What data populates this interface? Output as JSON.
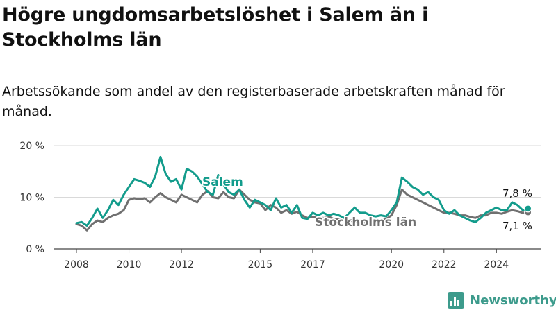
{
  "title": "Högre ungdomsarbetslöshet i Salem än i Stockholms län",
  "subtitle": "Arbetssökande som andel av den registerbaserade arbetskraften månad för månad.",
  "brand": {
    "name": "Newsworthy",
    "icon": "bar-chart-logo-icon",
    "color": "#3d9b8c"
  },
  "chart_data": {
    "type": "line",
    "title": "Högre ungdomsarbetslöshet i Salem än i Stockholms län",
    "subtitle": "Arbetssökande som andel av den registerbaserade arbetskraften månad för månad.",
    "xlabel": "",
    "ylabel": "",
    "x_ticks": [
      2008,
      2010,
      2012,
      2015,
      2017,
      2020,
      2022,
      2024
    ],
    "y_ticks": [
      0,
      10,
      20
    ],
    "y_tick_labels": [
      "0 %",
      "10 %",
      "20 %"
    ],
    "ylim": [
      0,
      20
    ],
    "xlim": [
      2008,
      2026
    ],
    "grid": true,
    "series": [
      {
        "name": "Salem",
        "color": "#139c8c",
        "end_label": "7,8 %",
        "points": [
          [
            2008.0,
            5.0
          ],
          [
            2008.2,
            5.2
          ],
          [
            2008.4,
            4.5
          ],
          [
            2008.6,
            6.0
          ],
          [
            2008.8,
            7.8
          ],
          [
            2009.0,
            6.0
          ],
          [
            2009.2,
            7.5
          ],
          [
            2009.4,
            9.5
          ],
          [
            2009.6,
            8.5
          ],
          [
            2009.8,
            10.5
          ],
          [
            2010.0,
            12.0
          ],
          [
            2010.2,
            13.5
          ],
          [
            2010.4,
            13.2
          ],
          [
            2010.6,
            12.8
          ],
          [
            2010.8,
            12.0
          ],
          [
            2011.0,
            14.0
          ],
          [
            2011.2,
            17.8
          ],
          [
            2011.4,
            14.5
          ],
          [
            2011.6,
            13.0
          ],
          [
            2011.8,
            13.5
          ],
          [
            2012.0,
            11.5
          ],
          [
            2012.2,
            15.5
          ],
          [
            2012.4,
            15.0
          ],
          [
            2012.6,
            14.0
          ],
          [
            2012.8,
            12.5
          ],
          [
            2013.0,
            11.0
          ],
          [
            2013.2,
            10.5
          ],
          [
            2013.4,
            14.3
          ],
          [
            2013.6,
            12.5
          ],
          [
            2013.8,
            11.0
          ],
          [
            2014.0,
            10.5
          ],
          [
            2014.2,
            11.5
          ],
          [
            2014.4,
            9.5
          ],
          [
            2014.6,
            8.0
          ],
          [
            2014.8,
            9.5
          ],
          [
            2015.0,
            9.0
          ],
          [
            2015.2,
            8.5
          ],
          [
            2015.4,
            7.5
          ],
          [
            2015.6,
            9.8
          ],
          [
            2015.8,
            8.0
          ],
          [
            2016.0,
            8.5
          ],
          [
            2016.2,
            7.0
          ],
          [
            2016.4,
            8.5
          ],
          [
            2016.6,
            6.0
          ],
          [
            2016.8,
            5.8
          ],
          [
            2017.0,
            7.0
          ],
          [
            2017.2,
            6.5
          ],
          [
            2017.4,
            7.0
          ],
          [
            2017.6,
            6.5
          ],
          [
            2017.8,
            6.8
          ],
          [
            2018.0,
            6.5
          ],
          [
            2018.2,
            6.0
          ],
          [
            2018.4,
            7.0
          ],
          [
            2018.6,
            8.0
          ],
          [
            2018.8,
            7.0
          ],
          [
            2019.0,
            7.0
          ],
          [
            2019.2,
            6.5
          ],
          [
            2019.4,
            6.3
          ],
          [
            2019.6,
            6.5
          ],
          [
            2019.8,
            6.3
          ],
          [
            2020.0,
            7.5
          ],
          [
            2020.2,
            9.0
          ],
          [
            2020.4,
            13.8
          ],
          [
            2020.6,
            13.0
          ],
          [
            2020.8,
            12.0
          ],
          [
            2021.0,
            11.5
          ],
          [
            2021.2,
            10.5
          ],
          [
            2021.4,
            11.0
          ],
          [
            2021.6,
            10.0
          ],
          [
            2021.8,
            9.5
          ],
          [
            2022.0,
            7.5
          ],
          [
            2022.2,
            6.8
          ],
          [
            2022.4,
            7.5
          ],
          [
            2022.6,
            6.5
          ],
          [
            2022.8,
            6.0
          ],
          [
            2023.0,
            5.5
          ],
          [
            2023.2,
            5.2
          ],
          [
            2023.4,
            6.0
          ],
          [
            2023.6,
            7.0
          ],
          [
            2023.8,
            7.5
          ],
          [
            2024.0,
            8.0
          ],
          [
            2024.2,
            7.5
          ],
          [
            2024.4,
            7.5
          ],
          [
            2024.6,
            9.0
          ],
          [
            2024.8,
            8.5
          ],
          [
            2025.0,
            7.5
          ],
          [
            2025.2,
            7.8
          ]
        ]
      },
      {
        "name": "Stockholms län",
        "color": "#707070",
        "end_label": "7,1 %",
        "points": [
          [
            2008.0,
            4.8
          ],
          [
            2008.2,
            4.5
          ],
          [
            2008.4,
            3.6
          ],
          [
            2008.6,
            4.8
          ],
          [
            2008.8,
            5.5
          ],
          [
            2009.0,
            5.2
          ],
          [
            2009.2,
            6.0
          ],
          [
            2009.4,
            6.5
          ],
          [
            2009.6,
            6.8
          ],
          [
            2009.8,
            7.5
          ],
          [
            2010.0,
            9.5
          ],
          [
            2010.2,
            9.8
          ],
          [
            2010.4,
            9.6
          ],
          [
            2010.6,
            9.8
          ],
          [
            2010.8,
            9.0
          ],
          [
            2011.0,
            10.0
          ],
          [
            2011.2,
            10.8
          ],
          [
            2011.4,
            10.0
          ],
          [
            2011.6,
            9.5
          ],
          [
            2011.8,
            9.0
          ],
          [
            2012.0,
            10.5
          ],
          [
            2012.2,
            10.0
          ],
          [
            2012.4,
            9.5
          ],
          [
            2012.6,
            9.0
          ],
          [
            2012.8,
            10.5
          ],
          [
            2013.0,
            11.2
          ],
          [
            2013.2,
            10.0
          ],
          [
            2013.4,
            9.8
          ],
          [
            2013.6,
            11.0
          ],
          [
            2013.8,
            10.0
          ],
          [
            2014.0,
            9.8
          ],
          [
            2014.2,
            11.5
          ],
          [
            2014.4,
            10.5
          ],
          [
            2014.6,
            9.5
          ],
          [
            2014.8,
            9.0
          ],
          [
            2015.0,
            8.8
          ],
          [
            2015.2,
            7.5
          ],
          [
            2015.4,
            8.5
          ],
          [
            2015.6,
            8.0
          ],
          [
            2015.8,
            7.0
          ],
          [
            2016.0,
            7.5
          ],
          [
            2016.2,
            6.8
          ],
          [
            2016.4,
            7.2
          ],
          [
            2016.6,
            6.5
          ],
          [
            2016.8,
            6.0
          ],
          [
            2017.0,
            6.2
          ],
          [
            2017.2,
            6.0
          ],
          [
            2017.4,
            6.0
          ],
          [
            2017.6,
            6.3
          ],
          [
            2017.8,
            5.8
          ],
          [
            2018.0,
            5.8
          ],
          [
            2018.2,
            5.5
          ],
          [
            2018.4,
            5.5
          ],
          [
            2018.6,
            5.3
          ],
          [
            2018.8,
            5.0
          ],
          [
            2019.0,
            5.0
          ],
          [
            2019.2,
            5.2
          ],
          [
            2019.4,
            5.5
          ],
          [
            2019.6,
            5.5
          ],
          [
            2019.8,
            5.8
          ],
          [
            2020.0,
            6.5
          ],
          [
            2020.2,
            8.5
          ],
          [
            2020.4,
            11.5
          ],
          [
            2020.6,
            10.5
          ],
          [
            2020.8,
            10.0
          ],
          [
            2021.0,
            9.5
          ],
          [
            2021.2,
            9.0
          ],
          [
            2021.4,
            8.5
          ],
          [
            2021.6,
            8.0
          ],
          [
            2021.8,
            7.5
          ],
          [
            2022.0,
            7.0
          ],
          [
            2022.2,
            7.0
          ],
          [
            2022.4,
            6.8
          ],
          [
            2022.6,
            6.5
          ],
          [
            2022.8,
            6.5
          ],
          [
            2023.0,
            6.2
          ],
          [
            2023.2,
            6.0
          ],
          [
            2023.4,
            6.5
          ],
          [
            2023.6,
            6.5
          ],
          [
            2023.8,
            7.0
          ],
          [
            2024.0,
            7.0
          ],
          [
            2024.2,
            6.8
          ],
          [
            2024.4,
            7.2
          ],
          [
            2024.6,
            7.5
          ],
          [
            2024.8,
            7.3
          ],
          [
            2025.0,
            7.0
          ],
          [
            2025.2,
            7.1
          ]
        ]
      }
    ]
  }
}
